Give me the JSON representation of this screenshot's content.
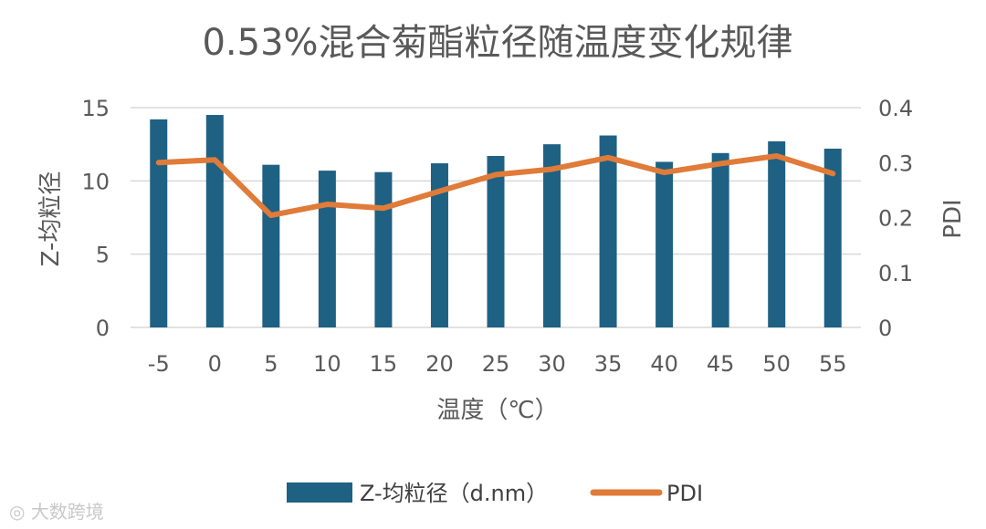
{
  "chart_data": {
    "type": "bar",
    "title": "0.53%混合菊酯粒径随温度变化规律",
    "xlabel": "温度（℃）",
    "ylabel": "Z-均粒径",
    "y2label": "PDI",
    "categories": [
      "-5",
      "0",
      "5",
      "10",
      "15",
      "20",
      "25",
      "30",
      "35",
      "40",
      "45",
      "50",
      "55"
    ],
    "ylim": [
      0,
      15
    ],
    "y2lim": [
      0,
      0.4
    ],
    "yticks": [
      "0",
      "5",
      "10",
      "15"
    ],
    "y2ticks": [
      "0",
      "0.1",
      "0.2",
      "0.3",
      "0.4"
    ],
    "grid": true,
    "legend_position": "bottom",
    "series": [
      {
        "name": "Z-均粒径（d.nm）",
        "kind": "bar",
        "axis": "left",
        "color": "#1f6183",
        "values": [
          14.2,
          14.5,
          11.1,
          10.7,
          10.6,
          11.2,
          11.7,
          12.5,
          13.1,
          11.3,
          11.9,
          12.7,
          12.2
        ]
      },
      {
        "name": "PDI",
        "kind": "line",
        "axis": "right",
        "color": "#e07b39",
        "values": [
          0.3,
          0.305,
          0.204,
          0.224,
          0.217,
          0.248,
          0.278,
          0.288,
          0.309,
          0.282,
          0.298,
          0.312,
          0.28
        ]
      }
    ]
  },
  "watermark": "大数跨境"
}
